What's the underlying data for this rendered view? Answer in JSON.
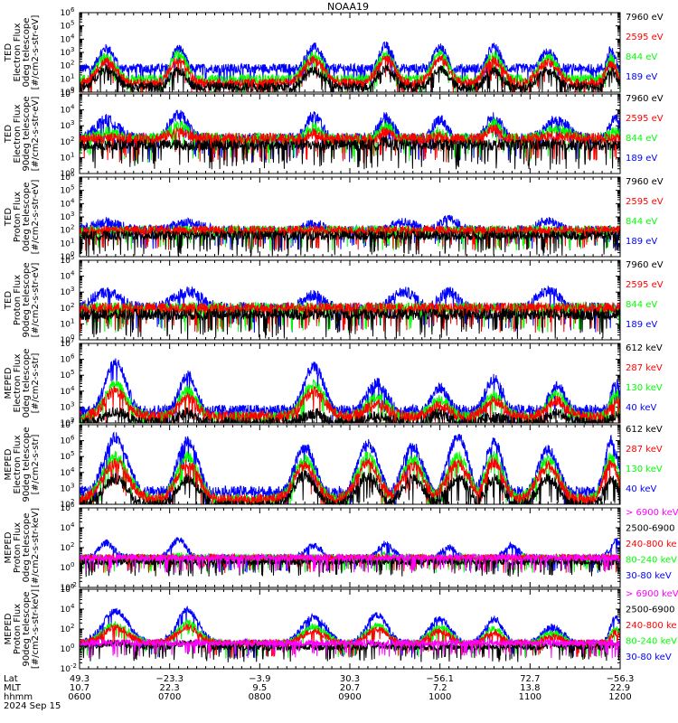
{
  "title": "NOAA19",
  "colors": {
    "blue": "#0000ff",
    "red": "#ff0000",
    "green": "#00ff00",
    "black": "#000000",
    "magenta": "#ff00ff"
  },
  "chart_data": [
    {
      "type": "line",
      "ylabel": [
        "TED",
        "Electron Flux",
        "0deg telescope",
        "[#/cm2-s-str-eV]"
      ],
      "log_range": [
        0,
        6
      ],
      "tick_exps": [
        0,
        1,
        2,
        3,
        4,
        5,
        6
      ],
      "legend": [
        {
          "name": "7960 eV",
          "color": "black"
        },
        {
          "name": "2595 eV",
          "color": "red"
        },
        {
          "name": "844 eV",
          "color": "green"
        },
        {
          "name": "189 eV",
          "color": "blue"
        }
      ],
      "peaks": [
        {
          "t": 6.3,
          "w": 0.12,
          "b": 3.3,
          "c": 2.7,
          "k": 2.2,
          "base": 0.5
        },
        {
          "t": 7.1,
          "w": 0.1,
          "b": 3.3,
          "c": 2.9,
          "k": 2.0,
          "base": 0.5
        },
        {
          "t": 8.6,
          "w": 0.12,
          "b": 3.4,
          "c": 2.8,
          "k": 2.0,
          "base": 0.6
        },
        {
          "t": 9.4,
          "w": 0.1,
          "b": 3.5,
          "c": 2.9,
          "k": 2.2,
          "base": 0.6
        },
        {
          "t": 10.0,
          "w": 0.1,
          "b": 3.4,
          "c": 2.9,
          "k": 2.1,
          "base": 0.6
        },
        {
          "t": 10.6,
          "w": 0.1,
          "b": 3.4,
          "c": 2.8,
          "k": 2.0,
          "base": 0.6
        },
        {
          "t": 11.2,
          "w": 0.12,
          "b": 3.0,
          "c": 2.6,
          "k": 2.0,
          "base": 0.6
        },
        {
          "t": 11.9,
          "w": 0.06,
          "b": 3.2,
          "c": 2.6,
          "k": 2.0,
          "base": 0.6
        }
      ],
      "floor": 1.0
    },
    {
      "type": "line",
      "ylabel": [
        "TED",
        "Electron Flux",
        "90deg telescope",
        "[#/cm2-s-str-eV]"
      ],
      "log_range": [
        0,
        5
      ],
      "tick_exps": [
        0,
        1,
        2,
        3,
        4,
        5
      ],
      "legend": [
        {
          "name": "7960 eV",
          "color": "black"
        },
        {
          "name": "2595 eV",
          "color": "red"
        },
        {
          "name": "844 eV",
          "color": "green"
        },
        {
          "name": "189 eV",
          "color": "blue"
        }
      ],
      "peaks": [
        {
          "t": 6.3,
          "w": 0.12,
          "b": 3.4,
          "c": 2.6,
          "k": 2.2,
          "base": 2.2
        },
        {
          "t": 7.1,
          "w": 0.1,
          "b": 3.7,
          "c": 3.0,
          "k": 2.2,
          "base": 2.2
        },
        {
          "t": 8.6,
          "w": 0.12,
          "b": 3.6,
          "c": 2.9,
          "k": 2.2,
          "base": 1.5
        },
        {
          "t": 9.4,
          "w": 0.1,
          "b": 3.5,
          "c": 3.0,
          "k": 2.4,
          "base": 1.8
        },
        {
          "t": 10.0,
          "w": 0.1,
          "b": 3.4,
          "c": 2.7,
          "k": 2.2,
          "base": 1.6
        },
        {
          "t": 10.6,
          "w": 0.1,
          "b": 3.6,
          "c": 3.2,
          "k": 2.1,
          "base": 1.8
        },
        {
          "t": 11.3,
          "w": 0.12,
          "b": 3.4,
          "c": 2.8,
          "k": 2.2,
          "base": 2.2
        },
        {
          "t": 11.95,
          "w": 0.06,
          "b": 3.5,
          "c": 2.6,
          "k": 2.0,
          "base": 2.2
        }
      ],
      "floor": 0.8
    },
    {
      "type": "line",
      "ylabel": [
        "TED",
        "Proton Flux",
        "0deg telescope",
        "[#/cm2-s-str-eV]"
      ],
      "log_range": [
        0,
        6
      ],
      "tick_exps": [
        0,
        1,
        2,
        3,
        4,
        5,
        6
      ],
      "legend": [
        {
          "name": "7960 eV",
          "color": "black"
        },
        {
          "name": "2595 eV",
          "color": "red"
        },
        {
          "name": "844 eV",
          "color": "green"
        },
        {
          "name": "189 eV",
          "color": "blue"
        }
      ],
      "peaks": [
        {
          "t": 6.3,
          "w": 0.15,
          "b": 2.6,
          "c": 1.2,
          "k": 1.0,
          "base": 2.0
        },
        {
          "t": 7.2,
          "w": 0.15,
          "b": 2.6,
          "c": 1.3,
          "k": 1.0,
          "base": 2.0
        },
        {
          "t": 8.6,
          "w": 0.15,
          "b": 2.5,
          "c": 1.2,
          "k": 1.0,
          "base": 1.5
        },
        {
          "t": 9.6,
          "w": 0.15,
          "b": 2.6,
          "c": 1.2,
          "k": 1.0,
          "base": 1.8
        },
        {
          "t": 10.1,
          "w": 0.12,
          "b": 2.8,
          "c": 1.4,
          "k": 1.0,
          "base": 1.8
        },
        {
          "t": 11.2,
          "w": 0.15,
          "b": 2.7,
          "c": 1.3,
          "k": 1.0,
          "base": 1.6
        }
      ],
      "floor": 1.2
    },
    {
      "type": "line",
      "ylabel": [
        "TED",
        "Proton Flux",
        "90deg telescope",
        "[#/cm2-s-str-eV]"
      ],
      "log_range": [
        0,
        5
      ],
      "tick_exps": [
        0,
        1,
        2,
        3,
        4,
        5
      ],
      "legend": [
        {
          "name": "7960 eV",
          "color": "black"
        },
        {
          "name": "2595 eV",
          "color": "red"
        },
        {
          "name": "844 eV",
          "color": "green"
        },
        {
          "name": "189 eV",
          "color": "blue"
        }
      ],
      "peaks": [
        {
          "t": 6.3,
          "w": 0.15,
          "b": 3.0,
          "c": 1.4,
          "k": 0.6,
          "base": 2.0
        },
        {
          "t": 7.2,
          "w": 0.15,
          "b": 3.0,
          "c": 1.5,
          "k": 0.6,
          "base": 2.0
        },
        {
          "t": 8.6,
          "w": 0.15,
          "b": 2.8,
          "c": 1.4,
          "k": 0.6,
          "base": 1.6
        },
        {
          "t": 9.6,
          "w": 0.15,
          "b": 3.0,
          "c": 1.4,
          "k": 0.6,
          "base": 1.8
        },
        {
          "t": 10.1,
          "w": 0.12,
          "b": 3.0,
          "c": 1.6,
          "k": 0.6,
          "base": 1.8
        },
        {
          "t": 11.2,
          "w": 0.15,
          "b": 3.1,
          "c": 1.5,
          "k": 0.6,
          "base": 1.6
        }
      ],
      "floor": 0.5
    },
    {
      "type": "line",
      "ylabel": [
        "MEPED",
        "Electron Flux",
        "0deg telescope",
        "[#/cm2-s-str]"
      ],
      "log_range": [
        2,
        7
      ],
      "tick_exps": [
        2,
        3,
        4,
        5,
        6,
        7
      ],
      "legend": [
        {
          "name": "612 keV",
          "color": "black"
        },
        {
          "name": "287 keV",
          "color": "red"
        },
        {
          "name": "130 keV",
          "color": "green"
        },
        {
          "name": "40 keV",
          "color": "blue"
        }
      ],
      "peaks": [
        {
          "t": 6.4,
          "w": 0.12,
          "b": 5.8,
          "c": 4.4,
          "k": 3.1,
          "base": 2.4
        },
        {
          "t": 7.2,
          "w": 0.1,
          "b": 5.0,
          "c": 4.0,
          "k": 3.0,
          "base": 2.4
        },
        {
          "t": 8.6,
          "w": 0.12,
          "b": 5.5,
          "c": 4.4,
          "k": 3.0,
          "base": 2.4
        },
        {
          "t": 9.3,
          "w": 0.12,
          "b": 4.5,
          "c": 3.6,
          "k": 2.8,
          "base": 2.4
        },
        {
          "t": 10.0,
          "w": 0.1,
          "b": 4.2,
          "c": 3.5,
          "k": 3.0,
          "base": 2.4
        },
        {
          "t": 10.6,
          "w": 0.1,
          "b": 4.8,
          "c": 3.8,
          "k": 2.8,
          "base": 2.4
        },
        {
          "t": 11.3,
          "w": 0.1,
          "b": 4.3,
          "c": 3.8,
          "k": 3.0,
          "base": 2.4
        },
        {
          "t": 11.95,
          "w": 0.06,
          "b": 4.5,
          "c": 3.8,
          "k": 2.8,
          "base": 2.4
        }
      ],
      "floor": 2.0
    },
    {
      "type": "line",
      "ylabel": [
        "MEPED",
        "Electron Flux",
        "90deg telescope",
        "[#/cm2-s-str]"
      ],
      "log_range": [
        2,
        7
      ],
      "tick_exps": [
        2,
        3,
        4,
        5,
        6,
        7
      ],
      "legend": [
        {
          "name": "612 keV",
          "color": "black"
        },
        {
          "name": "287 keV",
          "color": "red"
        },
        {
          "name": "130 keV",
          "color": "green"
        },
        {
          "name": "40 keV",
          "color": "blue"
        }
      ],
      "peaks": [
        {
          "t": 6.4,
          "w": 0.14,
          "b": 6.2,
          "c": 5.0,
          "k": 4.0,
          "base": 2.3
        },
        {
          "t": 7.2,
          "w": 0.12,
          "b": 6.0,
          "c": 5.0,
          "k": 4.0,
          "base": 2.3
        },
        {
          "t": 8.5,
          "w": 0.12,
          "b": 5.6,
          "c": 4.8,
          "k": 4.2,
          "base": 2.3
        },
        {
          "t": 9.2,
          "w": 0.12,
          "b": 5.8,
          "c": 5.0,
          "k": 4.2,
          "base": 2.3
        },
        {
          "t": 9.7,
          "w": 0.12,
          "b": 5.6,
          "c": 4.8,
          "k": 4.0,
          "base": 2.3
        },
        {
          "t": 10.2,
          "w": 0.12,
          "b": 6.2,
          "c": 5.0,
          "k": 4.0,
          "base": 2.3
        },
        {
          "t": 10.6,
          "w": 0.1,
          "b": 6.0,
          "c": 5.0,
          "k": 4.0,
          "base": 2.3
        },
        {
          "t": 11.2,
          "w": 0.12,
          "b": 5.4,
          "c": 4.8,
          "k": 4.0,
          "base": 2.3
        },
        {
          "t": 11.9,
          "w": 0.08,
          "b": 6.0,
          "c": 5.0,
          "k": 4.0,
          "base": 2.3
        }
      ],
      "floor": 2.0
    },
    {
      "type": "line",
      "ylabel": [
        "MEPED",
        "Proton Flux",
        "0deg telescope",
        "[#/cm2-s-str-keV]"
      ],
      "log_range": [
        -2,
        6
      ],
      "tick_exps": [
        -2,
        0,
        2,
        4,
        6
      ],
      "legend": [
        {
          "name": "> 6900 keV",
          "color": "magenta"
        },
        {
          "name": "2500-6900",
          "color": "black"
        },
        {
          "name": "240-800 ke",
          "color": "red"
        },
        {
          "name": "80-240 keV",
          "color": "green"
        },
        {
          "name": "30-80 keV",
          "color": "blue"
        }
      ],
      "peaks": [
        {
          "t": 6.3,
          "w": 0.08,
          "b": 2.5,
          "c": 1.0,
          "k": -1.0,
          "base": 1.0
        },
        {
          "t": 7.1,
          "w": 0.08,
          "b": 2.8,
          "c": 1.2,
          "k": -1.0,
          "base": 1.0
        },
        {
          "t": 8.6,
          "w": 0.1,
          "b": 2.2,
          "c": 1.0,
          "k": -1.0,
          "base": 0.8
        },
        {
          "t": 9.4,
          "w": 0.08,
          "b": 2.4,
          "c": 1.2,
          "k": -1.0,
          "base": 0.9
        },
        {
          "t": 10.1,
          "w": 0.08,
          "b": 2.0,
          "c": 1.0,
          "k": -1.0,
          "base": 0.9
        },
        {
          "t": 10.8,
          "w": 0.08,
          "b": 2.2,
          "c": 1.0,
          "k": -1.0,
          "base": 0.9
        },
        {
          "t": 11.25,
          "w": 0.1,
          "b": 0.8,
          "c": 0.6,
          "k": 0.4,
          "base": 0.8
        },
        {
          "t": 11.95,
          "w": 0.06,
          "b": 2.6,
          "c": 1.0,
          "k": -1.0,
          "base": 1.0
        }
      ],
      "floor": -0.5
    },
    {
      "type": "line",
      "ylabel": [
        "MEPED",
        "Proton Flux",
        "90deg telescope",
        "[#/cm2-s-str-keV]"
      ],
      "log_range": [
        -2,
        6
      ],
      "tick_exps": [
        -2,
        0,
        2,
        4,
        6
      ],
      "legend": [
        {
          "name": "> 6900 keV",
          "color": "magenta"
        },
        {
          "name": "2500-6900",
          "color": "black"
        },
        {
          "name": "240-800 ke",
          "color": "red"
        },
        {
          "name": "80-240 keV",
          "color": "green"
        },
        {
          "name": "30-80 keV",
          "color": "blue"
        }
      ],
      "peaks": [
        {
          "t": 6.4,
          "w": 0.14,
          "b": 3.8,
          "c": 2.5,
          "k": 1.0,
          "base": 0.6
        },
        {
          "t": 7.2,
          "w": 0.12,
          "b": 3.9,
          "c": 2.6,
          "k": 1.0,
          "base": 0.6
        },
        {
          "t": 8.6,
          "w": 0.14,
          "b": 3.2,
          "c": 2.2,
          "k": 0.6,
          "base": 0.4
        },
        {
          "t": 9.3,
          "w": 0.12,
          "b": 3.4,
          "c": 2.4,
          "k": 0.8,
          "base": 0.4
        },
        {
          "t": 10.0,
          "w": 0.12,
          "b": 3.0,
          "c": 2.2,
          "k": 0.6,
          "base": 0.4
        },
        {
          "t": 10.6,
          "w": 0.1,
          "b": 3.0,
          "c": 2.0,
          "k": 0.6,
          "base": 0.4
        },
        {
          "t": 11.25,
          "w": 0.12,
          "b": 2.2,
          "c": 1.6,
          "k": 0.8,
          "base": 0.4
        },
        {
          "t": 11.95,
          "w": 0.06,
          "b": 3.2,
          "c": 2.0,
          "k": 0.8,
          "base": 0.4
        }
      ],
      "floor": -0.5
    }
  ],
  "xaxis": {
    "row_labels": [
      "Lat",
      "MLT",
      "hhmm"
    ],
    "date": "2024 Sep 15",
    "ticks": [
      {
        "t": 6.0,
        "lat": "49.3",
        "mlt": "10.7",
        "hhmm": "0600"
      },
      {
        "t": 7.0,
        "lat": "−23.3",
        "mlt": "22.3",
        "hhmm": "0700"
      },
      {
        "t": 8.0,
        "lat": "−3.9",
        "mlt": "9.5",
        "hhmm": "0800"
      },
      {
        "t": 9.0,
        "lat": "30.3",
        "mlt": "20.7",
        "hhmm": "0900"
      },
      {
        "t": 10.0,
        "lat": "−56.1",
        "mlt": "7.2",
        "hhmm": "1000"
      },
      {
        "t": 11.0,
        "lat": "72.7",
        "mlt": "13.8",
        "hhmm": "1100"
      },
      {
        "t": 12.0,
        "lat": "−56.3",
        "mlt": "22.9",
        "hhmm": "1200"
      }
    ],
    "range": [
      6.0,
      12.0
    ]
  }
}
